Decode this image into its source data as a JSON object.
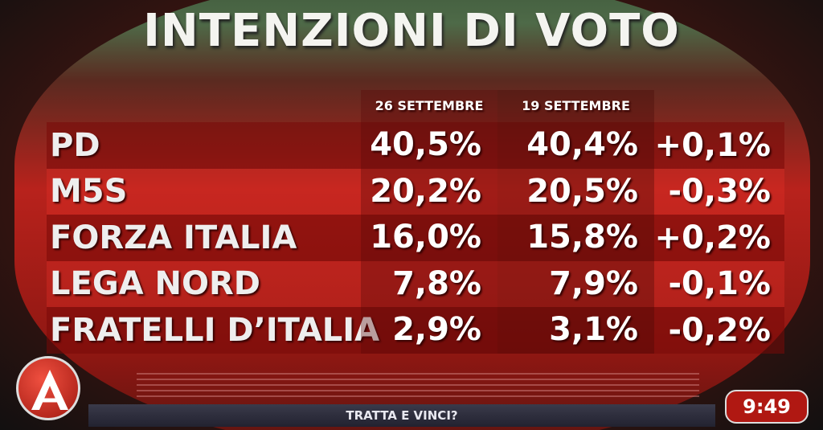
{
  "header": {
    "title": "INTENZIONI DI VOTO"
  },
  "table": {
    "columns": [
      "26 SETTEMBRE",
      "19 SETTEMBRE"
    ],
    "rows": [
      [
        "PD",
        "40,5%",
        "40,4%",
        "+0,1%"
      ],
      [
        "M5S",
        "20,2%",
        "20,5%",
        "-0,3%"
      ],
      [
        "FORZA ITALIA",
        "16,0%",
        "15,8%",
        "+0,2%"
      ],
      [
        "LEGA NORD",
        "7,8%",
        "7,9%",
        "-0,1%"
      ],
      [
        "FRATELLI D’ITALIA",
        "2,9%",
        "3,1%",
        "-0,2%"
      ]
    ]
  },
  "footer": {
    "ticker": "TRATTA E VINCI?",
    "clock": "9:49"
  }
}
